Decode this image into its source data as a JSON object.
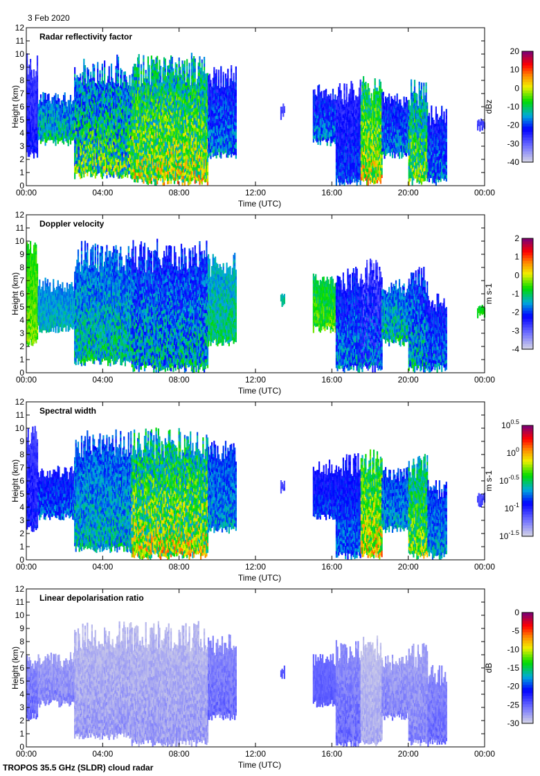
{
  "date_label": "3 Feb 2020",
  "footer": "TROPOS 35.5 GHz (SLDR) cloud radar",
  "chart_data": [
    {
      "type": "heatmap",
      "title": "Radar reflectivity factor",
      "xlabel": "Time (UTC)",
      "ylabel": "Height (km)",
      "xlim": [
        0,
        24
      ],
      "ylim": [
        0,
        12
      ],
      "xticks": [
        "00:00",
        "04:00",
        "08:00",
        "12:00",
        "16:00",
        "20:00",
        "00:00"
      ],
      "yticks": [
        "0",
        "1",
        "2",
        "3",
        "4",
        "5",
        "6",
        "7",
        "8",
        "9",
        "10",
        "11",
        "12"
      ],
      "colorbar": {
        "label": "dBz",
        "ticks": [
          "-40",
          "-30",
          "-20",
          "-10",
          "0",
          "10",
          "20"
        ],
        "range": [
          -40,
          20
        ]
      },
      "clouds": [
        [
          0,
          0.6,
          2,
          10,
          -30,
          -20
        ],
        [
          0.6,
          2.5,
          3,
          7,
          -25,
          -5
        ],
        [
          2.5,
          5.5,
          0.5,
          9.8,
          -30,
          5
        ],
        [
          5.5,
          9.5,
          0,
          10,
          -25,
          10
        ],
        [
          9.5,
          11,
          2,
          9,
          -30,
          -10
        ],
        [
          13.3,
          13.5,
          5,
          6,
          -30,
          -25
        ],
        [
          15,
          16.2,
          3,
          7.5,
          -30,
          -10
        ],
        [
          16.2,
          17.5,
          0,
          8,
          -30,
          -15
        ],
        [
          17.5,
          18.6,
          0,
          8.5,
          -20,
          10
        ],
        [
          18.6,
          20,
          2,
          7,
          -30,
          -10
        ],
        [
          20,
          21,
          0,
          8,
          -25,
          5
        ],
        [
          21,
          22,
          0,
          6,
          -30,
          -10
        ],
        [
          23.6,
          24,
          4,
          5,
          -30,
          -25
        ]
      ]
    },
    {
      "type": "heatmap",
      "title": "Doppler velocity",
      "xlabel": "Time (UTC)",
      "ylabel": "Height (km)",
      "xlim": [
        0,
        24
      ],
      "ylim": [
        0,
        12
      ],
      "xticks": [
        "00:00",
        "04:00",
        "08:00",
        "12:00",
        "16:00",
        "20:00",
        "00:00"
      ],
      "yticks": [
        "0",
        "1",
        "2",
        "3",
        "4",
        "5",
        "6",
        "7",
        "8",
        "9",
        "10",
        "11",
        "12"
      ],
      "colorbar": {
        "label": "m s-1",
        "ticks": [
          "-4",
          "-3",
          "-2",
          "-1",
          "0",
          "1",
          "2"
        ],
        "range": [
          -4,
          2
        ]
      },
      "clouds": [
        [
          0,
          0.6,
          2,
          10,
          -1,
          0
        ],
        [
          0.6,
          2.5,
          3,
          7,
          -2,
          -1
        ],
        [
          2.5,
          5.5,
          0.5,
          9.8,
          -2.5,
          -0.5
        ],
        [
          5.5,
          9.5,
          0,
          10,
          -3,
          -0.5
        ],
        [
          9.5,
          11,
          2,
          9,
          -2,
          -0.5
        ],
        [
          13.3,
          13.5,
          5,
          6,
          -1.5,
          -1
        ],
        [
          15,
          16.2,
          3,
          7.5,
          -1.5,
          0
        ],
        [
          16.2,
          17.5,
          0,
          8,
          -3,
          -1
        ],
        [
          17.5,
          18.6,
          0,
          8.5,
          -3.5,
          -1
        ],
        [
          18.6,
          20,
          2,
          7,
          -2.5,
          -0.5
        ],
        [
          20,
          21,
          0,
          8,
          -3,
          -0.5
        ],
        [
          21,
          22,
          0,
          6,
          -3,
          -1
        ],
        [
          23.6,
          24,
          4,
          5,
          -1,
          -0.5
        ]
      ]
    },
    {
      "type": "heatmap",
      "title": "Spectral width",
      "xlabel": "Time (UTC)",
      "ylabel": "Height (km)",
      "xlim": [
        0,
        24
      ],
      "ylim": [
        0,
        12
      ],
      "xticks": [
        "00:00",
        "04:00",
        "08:00",
        "12:00",
        "16:00",
        "20:00",
        "00:00"
      ],
      "yticks": [
        "0",
        "1",
        "2",
        "3",
        "4",
        "5",
        "6",
        "7",
        "8",
        "9",
        "10",
        "11",
        "12"
      ],
      "colorbar": {
        "label": "m s-1",
        "ticks": [
          "10^-1.5",
          "10^-1",
          "10^-0.5",
          "10^0",
          "10^0.5"
        ],
        "range": [
          -1.5,
          0.5
        ]
      },
      "clouds": [
        [
          0,
          0.6,
          2,
          10,
          -1.2,
          -0.8
        ],
        [
          0.6,
          2.5,
          3,
          7,
          -1.1,
          -0.6
        ],
        [
          2.5,
          5.5,
          0.5,
          9.8,
          -1,
          -0.4
        ],
        [
          5.5,
          9.5,
          0,
          10,
          -1,
          0.2
        ],
        [
          9.5,
          11,
          2,
          9,
          -1,
          -0.5
        ],
        [
          13.3,
          13.5,
          5,
          6,
          -1.2,
          -1
        ],
        [
          15,
          16.2,
          3,
          7.5,
          -1.1,
          -0.7
        ],
        [
          16.2,
          17.5,
          0,
          8,
          -1.1,
          -0.6
        ],
        [
          17.5,
          18.6,
          0,
          8.5,
          -0.8,
          0.2
        ],
        [
          18.6,
          20,
          2,
          7,
          -1,
          -0.5
        ],
        [
          20,
          21,
          0,
          8,
          -0.9,
          0
        ],
        [
          21,
          22,
          0,
          6,
          -1,
          -0.5
        ],
        [
          23.6,
          24,
          4,
          5,
          -1.2,
          -1
        ]
      ]
    },
    {
      "type": "heatmap",
      "title": "Linear depolarisation ratio",
      "xlabel": "Time (UTC)",
      "ylabel": "Height (km)",
      "xlim": [
        0,
        24
      ],
      "ylim": [
        0,
        12
      ],
      "xticks": [
        "00:00",
        "04:00",
        "08:00",
        "12:00",
        "16:00",
        "20:00",
        "00:00"
      ],
      "yticks": [
        "0",
        "1",
        "2",
        "3",
        "4",
        "5",
        "6",
        "7",
        "8",
        "9",
        "10",
        "11",
        "12"
      ],
      "colorbar": {
        "label": "dB",
        "ticks": [
          "-30",
          "-25",
          "-20",
          "-15",
          "-10",
          "-5",
          "0"
        ],
        "range": [
          -30,
          0
        ]
      },
      "clouds": [
        [
          0,
          0.6,
          2,
          7,
          -28,
          -24
        ],
        [
          0.6,
          2.5,
          3,
          7,
          -29,
          -25
        ],
        [
          2.5,
          5.5,
          0.5,
          9.5,
          -30,
          -26
        ],
        [
          5.5,
          9.5,
          0,
          9.5,
          -30,
          -26
        ],
        [
          9.5,
          11,
          2,
          8.5,
          -28,
          -24
        ],
        [
          13.3,
          13.5,
          5,
          6,
          -25,
          -24
        ],
        [
          15,
          16.2,
          3,
          7,
          -26,
          -24
        ],
        [
          16.2,
          17.5,
          0,
          8,
          -28,
          -24
        ],
        [
          17.5,
          18.6,
          0,
          8.5,
          -30,
          -27
        ],
        [
          18.6,
          20,
          2,
          7,
          -29,
          -25
        ],
        [
          20,
          21,
          0,
          8,
          -29,
          -25
        ],
        [
          21,
          22,
          0,
          6,
          -28,
          -24
        ]
      ]
    }
  ]
}
